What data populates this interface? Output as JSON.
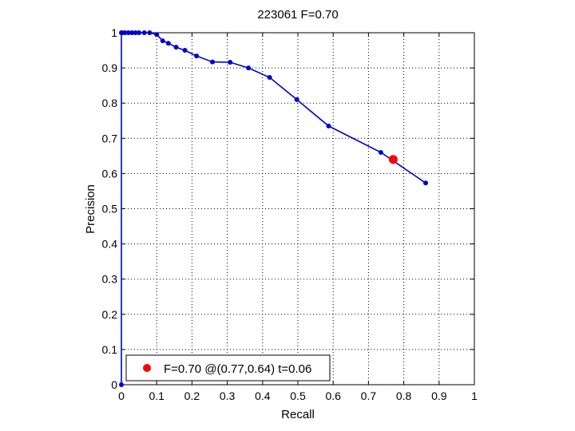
{
  "chart_data": {
    "type": "line",
    "title": "223061 F=0.70",
    "xlabel": "Recall",
    "ylabel": "Precision",
    "xlim": [
      0,
      1
    ],
    "ylim": [
      0,
      1
    ],
    "grid": true,
    "xticks": [
      "0",
      "0.1",
      "0.2",
      "0.3",
      "0.4",
      "0.5",
      "0.6",
      "0.7",
      "0.8",
      "0.9",
      "1"
    ],
    "yticks": [
      "0",
      "0.1",
      "0.2",
      "0.3",
      "0.4",
      "0.5",
      "0.6",
      "0.7",
      "0.8",
      "0.9",
      "1"
    ],
    "series": [
      {
        "color": "#0000cc",
        "marker": "dot",
        "x": [
          0.0,
          0.0,
          0.003,
          0.01,
          0.02,
          0.03,
          0.04,
          0.05,
          0.065,
          0.08,
          0.1,
          0.117,
          0.133,
          0.155,
          0.18,
          0.213,
          0.258,
          0.308,
          0.36,
          0.42,
          0.497,
          0.587,
          0.735,
          0.862
        ],
        "y": [
          0.0,
          1.0,
          1.0,
          1.0,
          1.0,
          1.0,
          1.0,
          1.0,
          1.0,
          1.0,
          0.995,
          0.977,
          0.97,
          0.959,
          0.95,
          0.934,
          0.917,
          0.916,
          0.9,
          0.873,
          0.81,
          0.735,
          0.66,
          0.573
        ]
      }
    ],
    "best_point": {
      "recall": 0.77,
      "precision": 0.64,
      "color": "#ff0000"
    },
    "legend": {
      "label": "F=0.70 @(0.77,0.64) t=0.06",
      "position": "bottom-left"
    }
  }
}
